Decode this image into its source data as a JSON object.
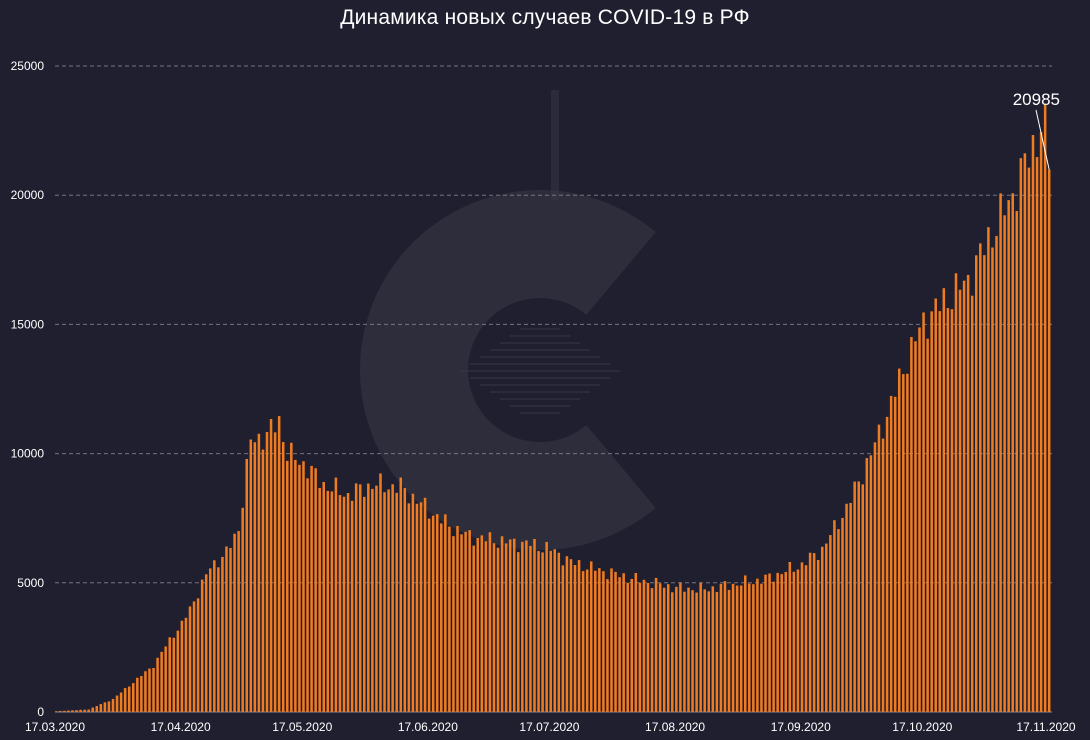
{
  "title": "Динамика новых случаев COVID-19 в РФ",
  "annotation": "20985",
  "colors": {
    "background": "#201f30",
    "bar": "#f07c22",
    "grid": "#8a8896",
    "watermark": "#3a3846"
  },
  "chart_data": {
    "type": "bar",
    "title": "Динамика новых случаев COVID-19 в РФ",
    "xlabel": "",
    "ylabel": "",
    "ylim": [
      0,
      25000
    ],
    "y_ticks": [
      "0",
      "5000",
      "10000",
      "15000",
      "20000",
      "25000"
    ],
    "x_tick_labels": [
      "17.03.2020",
      "17.04.2020",
      "17.05.2020",
      "17.06.2020",
      "17.07.2020",
      "17.08.2020",
      "17.09.2020",
      "17.10.2020",
      "17.11.2020"
    ],
    "x_start": "2020-03-17",
    "x_end": "2020-11-17",
    "grid": "horizontal dashed",
    "legend": "none",
    "annotations": [
      {
        "date": "2020-11-17",
        "value": 20985,
        "label": "20985"
      }
    ],
    "anchors": [
      [
        "2020-03-17",
        30
      ],
      [
        "2020-03-25",
        100
      ],
      [
        "2020-03-31",
        500
      ],
      [
        "2020-04-05",
        1150
      ],
      [
        "2020-04-10",
        1800
      ],
      [
        "2020-04-14",
        2800
      ],
      [
        "2020-04-17",
        3400
      ],
      [
        "2020-04-20",
        4300
      ],
      [
        "2020-04-24",
        5600
      ],
      [
        "2020-04-28",
        6150
      ],
      [
        "2020-05-01",
        7100
      ],
      [
        "2020-05-04",
        10500
      ],
      [
        "2020-05-08",
        10700
      ],
      [
        "2020-05-11",
        11300
      ],
      [
        "2020-05-13",
        10000
      ],
      [
        "2020-05-17",
        9600
      ],
      [
        "2020-05-22",
        8800
      ],
      [
        "2020-05-28",
        8400
      ],
      [
        "2020-06-03",
        8800
      ],
      [
        "2020-06-10",
        8700
      ],
      [
        "2020-06-17",
        7800
      ],
      [
        "2020-06-22",
        7200
      ],
      [
        "2020-06-27",
        6800
      ],
      [
        "2020-07-05",
        6600
      ],
      [
        "2020-07-12",
        6500
      ],
      [
        "2020-07-17",
        6300
      ],
      [
        "2020-07-22",
        5800
      ],
      [
        "2020-07-30",
        5450
      ],
      [
        "2020-08-08",
        5100
      ],
      [
        "2020-08-17",
        4800
      ],
      [
        "2020-08-24",
        4750
      ],
      [
        "2020-08-30",
        4900
      ],
      [
        "2020-09-08",
        5150
      ],
      [
        "2020-09-17",
        5700
      ],
      [
        "2020-09-22",
        6300
      ],
      [
        "2020-09-28",
        7900
      ],
      [
        "2020-10-03",
        9600
      ],
      [
        "2020-10-08",
        11500
      ],
      [
        "2020-10-13",
        13700
      ],
      [
        "2020-10-17",
        15100
      ],
      [
        "2020-10-22",
        15900
      ],
      [
        "2020-10-28",
        16700
      ],
      [
        "2020-11-02",
        18300
      ],
      [
        "2020-11-08",
        20000
      ],
      [
        "2020-11-13",
        21900
      ],
      [
        "2020-11-15",
        22650
      ],
      [
        "2020-11-16",
        22400
      ],
      [
        "2020-11-17",
        20985
      ]
    ]
  }
}
